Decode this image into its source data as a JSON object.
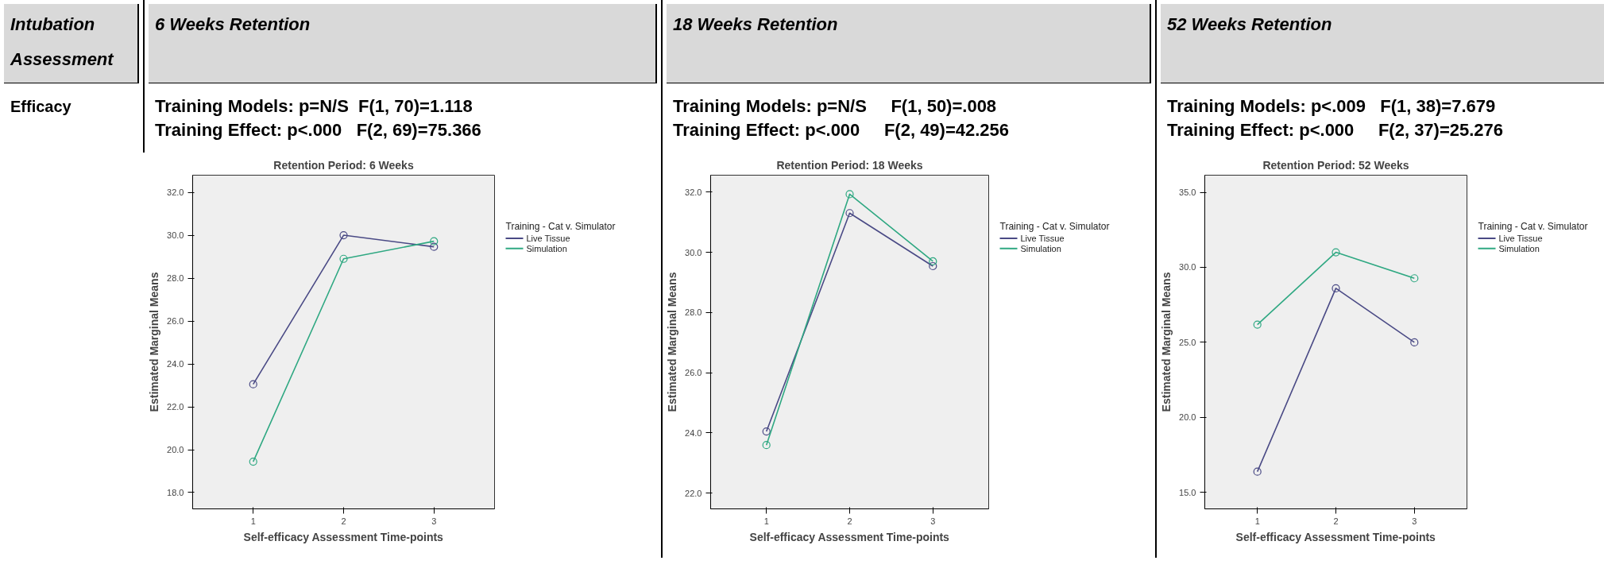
{
  "chart_data": [
    {
      "type": "other",
      "annotations": [
        "Intubation Assessment",
        "Efficacy"
      ]
    },
    {
      "type": "line",
      "title": "Retention Period: 6 Weeks",
      "xlabel": "Self-efficacy Assessment Time-points",
      "ylabel": "Estimated Marginal Means",
      "legend_title": "Training - Cat v. Simulator",
      "legend": "right",
      "grid": false,
      "marker": "circle",
      "x": [
        1,
        2,
        3
      ],
      "xlim": [
        0.33,
        3.67
      ],
      "xticks": [
        1,
        2,
        3
      ],
      "ylim": [
        17.24,
        32.8
      ],
      "yticks": [
        {
          "value": 18,
          "label": "18.0"
        },
        {
          "value": 20,
          "label": "20.0"
        },
        {
          "value": 22,
          "label": "22.0"
        },
        {
          "value": 24,
          "label": "24.0"
        },
        {
          "value": 26,
          "label": "26.0"
        },
        {
          "value": 28,
          "label": "28.0"
        },
        {
          "value": 30,
          "label": "30.0"
        },
        {
          "value": 32,
          "label": "32.0"
        }
      ],
      "series": [
        {
          "name": "Live Tissue",
          "color": "#4a4a85",
          "values": [
            23.05,
            30.0,
            29.46
          ]
        },
        {
          "name": "Simulation",
          "color": "#2fa882",
          "values": [
            19.44,
            28.9,
            29.72
          ]
        }
      ],
      "annotations": [
        "6 Weeks Retention",
        "Training Models: p=N/S  F(1, 70)=1.118",
        "Training Effect: p<.000   F(2, 69)=75.366"
      ]
    },
    {
      "type": "line",
      "title": "Retention Period: 18 Weeks",
      "xlabel": "Self-efficacy Assessment Time-points",
      "ylabel": "Estimated Marginal Means",
      "legend_title": "Training - Cat v. Simulator",
      "legend": "right",
      "grid": false,
      "marker": "circle",
      "x": [
        1,
        2,
        3
      ],
      "xlim": [
        0.33,
        3.67
      ],
      "xticks": [
        1,
        2,
        3
      ],
      "ylim": [
        21.48,
        32.56
      ],
      "yticks": [
        {
          "value": 22,
          "label": "22.0"
        },
        {
          "value": 24,
          "label": "24.0"
        },
        {
          "value": 26,
          "label": "26.0"
        },
        {
          "value": 28,
          "label": "28.0"
        },
        {
          "value": 30,
          "label": "30.0"
        },
        {
          "value": 32,
          "label": "32.0"
        }
      ],
      "series": [
        {
          "name": "Live Tissue",
          "color": "#4a4a85",
          "values": [
            24.05,
            31.3,
            29.54
          ]
        },
        {
          "name": "Simulation",
          "color": "#2fa882",
          "values": [
            23.6,
            31.93,
            29.7
          ]
        }
      ],
      "annotations": [
        "18 Weeks Retention",
        "Training Models: p=N/S     F(1, 50)=.008",
        "Training Effect: p<.000     F(2, 49)=42.256"
      ]
    },
    {
      "type": "line",
      "title": "Retention Period: 52 Weeks",
      "xlabel": "Self-efficacy Assessment Time-points",
      "ylabel": "Estimated Marginal Means",
      "legend_title": "Training - Cat v. Simulator",
      "legend": "right",
      "grid": false,
      "marker": "circle",
      "x": [
        1,
        2,
        3
      ],
      "xlim": [
        0.33,
        3.67
      ],
      "xticks": [
        1,
        2,
        3
      ],
      "ylim": [
        13.9,
        36.14
      ],
      "yticks": [
        {
          "value": 15,
          "label": "15.0"
        },
        {
          "value": 20,
          "label": "20.0"
        },
        {
          "value": 25,
          "label": "25.0"
        },
        {
          "value": 30,
          "label": "30.0"
        },
        {
          "value": 35,
          "label": "35.0"
        }
      ],
      "series": [
        {
          "name": "Live Tissue",
          "color": "#4a4a85",
          "values": [
            16.38,
            28.6,
            25.0
          ]
        },
        {
          "name": "Simulation",
          "color": "#2fa882",
          "values": [
            26.18,
            31.0,
            29.27
          ]
        }
      ],
      "annotations": [
        "52 Weeks Retention",
        "Training Models: p<.009   F(1, 38)=7.679",
        "Training Effect: p<.000     F(2, 37)=25.276"
      ]
    }
  ]
}
